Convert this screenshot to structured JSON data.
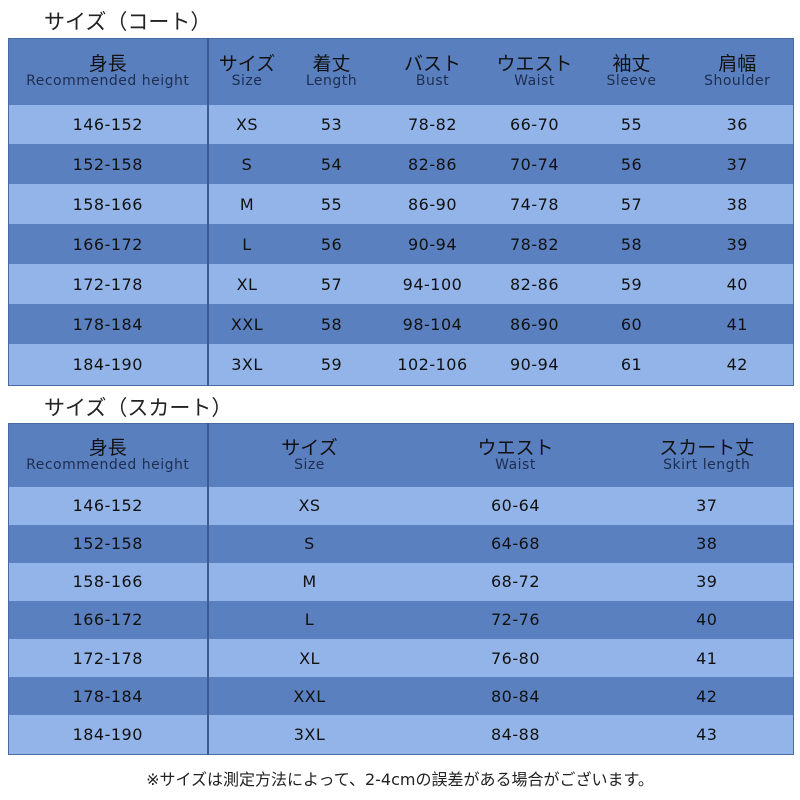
{
  "coat": {
    "title": "サイズ（コート）",
    "headers": [
      {
        "jp": "身長",
        "en": "Recommended height"
      },
      {
        "jp": "サイズ",
        "en": "Size"
      },
      {
        "jp": "着丈",
        "en": "Length"
      },
      {
        "jp": "バスト",
        "en": "Bust"
      },
      {
        "jp": "ウエスト",
        "en": "Waist"
      },
      {
        "jp": "袖丈",
        "en": "Sleeve"
      },
      {
        "jp": "肩幅",
        "en": "Shoulder"
      }
    ],
    "rows": [
      [
        "146-152",
        "XS",
        "53",
        "78-82",
        "66-70",
        "55",
        "36"
      ],
      [
        "152-158",
        "S",
        "54",
        "82-86",
        "70-74",
        "56",
        "37"
      ],
      [
        "158-166",
        "M",
        "55",
        "86-90",
        "74-78",
        "57",
        "38"
      ],
      [
        "166-172",
        "L",
        "56",
        "90-94",
        "78-82",
        "58",
        "39"
      ],
      [
        "172-178",
        "XL",
        "57",
        "94-100",
        "82-86",
        "59",
        "40"
      ],
      [
        "178-184",
        "XXL",
        "58",
        "98-104",
        "86-90",
        "60",
        "41"
      ],
      [
        "184-190",
        "3XL",
        "59",
        "102-106",
        "90-94",
        "61",
        "42"
      ]
    ]
  },
  "skirt": {
    "title": "サイズ（スカート）",
    "headers": [
      {
        "jp": "身長",
        "en": "Recommended height"
      },
      {
        "jp": "サイズ",
        "en": "Size"
      },
      {
        "jp": "ウエスト",
        "en": "Waist"
      },
      {
        "jp": "スカート丈",
        "en": "Skirt length"
      }
    ],
    "rows": [
      [
        "146-152",
        "XS",
        "60-64",
        "37"
      ],
      [
        "152-158",
        "S",
        "64-68",
        "38"
      ],
      [
        "158-166",
        "M",
        "68-72",
        "39"
      ],
      [
        "166-172",
        "L",
        "72-76",
        "40"
      ],
      [
        "172-178",
        "XL",
        "76-80",
        "41"
      ],
      [
        "178-184",
        "XXL",
        "80-84",
        "42"
      ],
      [
        "184-190",
        "3XL",
        "84-88",
        "43"
      ]
    ]
  },
  "note": "※サイズは測定方法によって、2-4cmの誤差がある場合がございます。",
  "colors": {
    "dark_row": "#5b80c0",
    "light_row": "#92b4e9",
    "header": "#5a7fbf"
  }
}
